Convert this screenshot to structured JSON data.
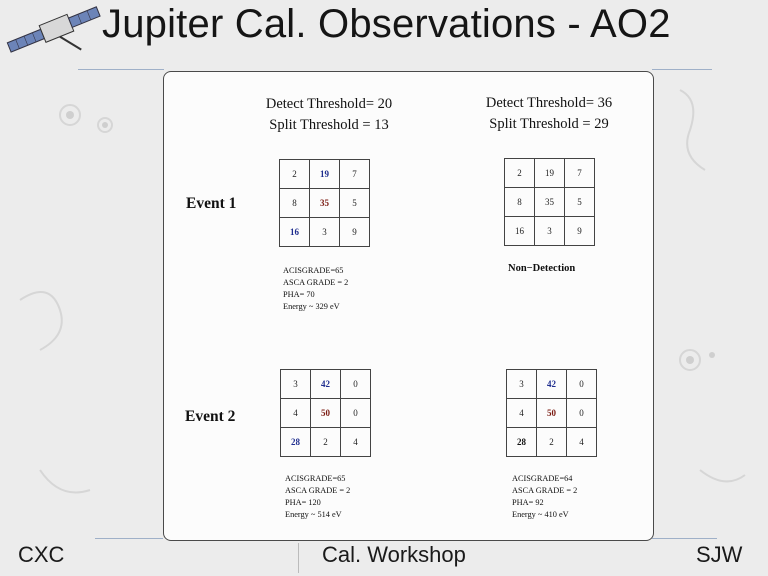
{
  "slide": {
    "title": "Jupiter Cal. Observations - AO2",
    "left": {
      "threshold_lines": [
        "Detect Threshold= 20",
        "Split Threshold = 13"
      ]
    },
    "right": {
      "threshold_lines": [
        "Detect Threshold= 36",
        "Split Threshold = 29"
      ]
    },
    "events": [
      {
        "label": "Event 1",
        "left_grid": [
          [
            {
              "v": "2",
              "c": ""
            },
            {
              "v": "19",
              "c": "blue"
            },
            {
              "v": "7",
              "c": ""
            }
          ],
          [
            {
              "v": "8",
              "c": ""
            },
            {
              "v": "35",
              "c": "red"
            },
            {
              "v": "5",
              "c": ""
            }
          ],
          [
            {
              "v": "16",
              "c": "blue"
            },
            {
              "v": "3",
              "c": ""
            },
            {
              "v": "9",
              "c": ""
            }
          ]
        ],
        "left_info": [
          "ACISGRADE=65",
          "ASCA GRADE = 2",
          "PHA= 70",
          "Energy ~ 329 eV"
        ],
        "right_grid": [
          [
            {
              "v": "2",
              "c": ""
            },
            {
              "v": "19",
              "c": ""
            },
            {
              "v": "7",
              "c": ""
            }
          ],
          [
            {
              "v": "8",
              "c": ""
            },
            {
              "v": "35",
              "c": ""
            },
            {
              "v": "5",
              "c": ""
            }
          ],
          [
            {
              "v": "16",
              "c": ""
            },
            {
              "v": "3",
              "c": ""
            },
            {
              "v": "9",
              "c": ""
            }
          ]
        ],
        "right_info": [
          "Non−Detection"
        ]
      },
      {
        "label": "Event 2",
        "left_grid": [
          [
            {
              "v": "3",
              "c": ""
            },
            {
              "v": "42",
              "c": "blue"
            },
            {
              "v": "0",
              "c": ""
            }
          ],
          [
            {
              "v": "4",
              "c": ""
            },
            {
              "v": "50",
              "c": "red"
            },
            {
              "v": "0",
              "c": ""
            }
          ],
          [
            {
              "v": "28",
              "c": "blue"
            },
            {
              "v": "2",
              "c": ""
            },
            {
              "v": "4",
              "c": ""
            }
          ]
        ],
        "left_info": [
          "ACISGRADE=65",
          "ASCA GRADE = 2",
          "PHA= 120",
          "Energy ~ 514 eV"
        ],
        "right_grid": [
          [
            {
              "v": "3",
              "c": ""
            },
            {
              "v": "42",
              "c": "blue"
            },
            {
              "v": "0",
              "c": ""
            }
          ],
          [
            {
              "v": "4",
              "c": ""
            },
            {
              "v": "50",
              "c": "red"
            },
            {
              "v": "0",
              "c": ""
            }
          ],
          [
            {
              "v": "28",
              "c": "bold"
            },
            {
              "v": "2",
              "c": ""
            },
            {
              "v": "4",
              "c": ""
            }
          ]
        ],
        "right_info": [
          "ACISGRADE=64",
          "ASCA GRADE = 2",
          "PHA= 92",
          "Energy ~ 410 eV"
        ]
      }
    ]
  },
  "footer": {
    "left": "CXC",
    "center": "Cal. Workshop",
    "right": "SJW"
  },
  "colors": {
    "highlight_blue": "#1e2d8e",
    "highlight_red": "#7b1b12",
    "rule_line": "#9fb0c8"
  },
  "icons": {
    "satellite": "satellite-icon",
    "background": "gear-watermark-icon"
  }
}
